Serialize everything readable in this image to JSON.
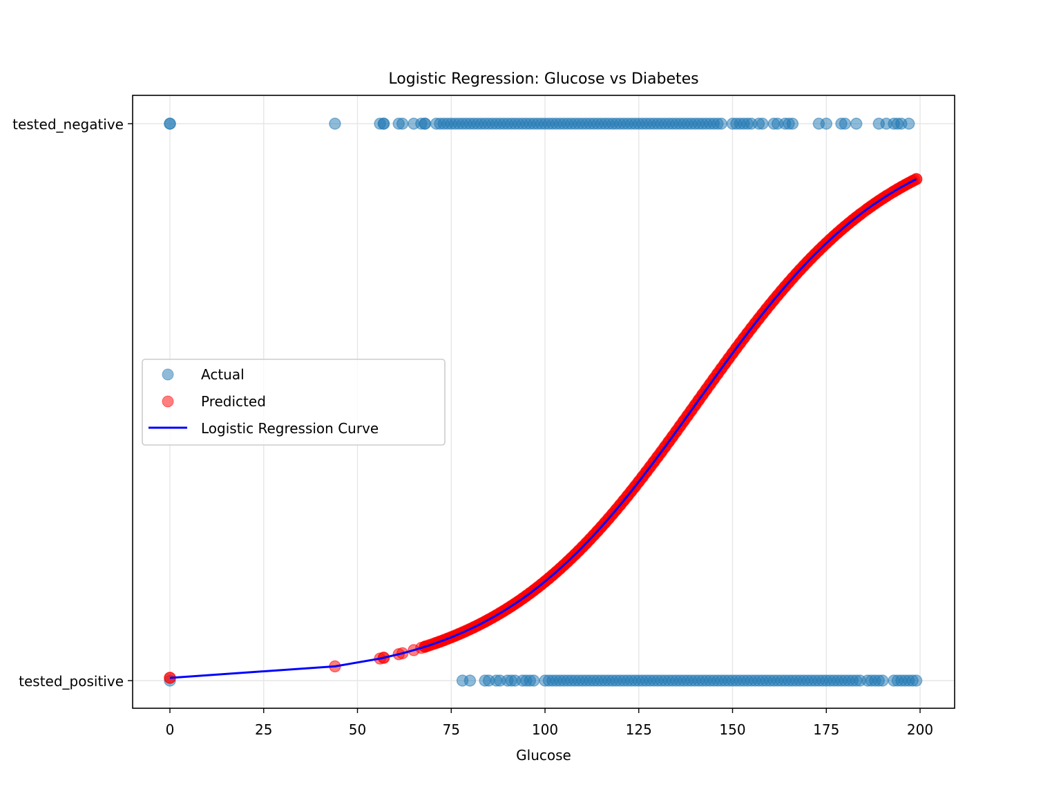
{
  "chart_data": {
    "type": "scatter",
    "title": "Logistic Regression: Glucose vs Diabetes",
    "xlabel": "Glucose",
    "ylabel": "",
    "xlim": [
      -10,
      209
    ],
    "x_ticks": [
      0,
      25,
      50,
      75,
      100,
      125,
      150,
      175,
      200
    ],
    "y_categories": [
      "tested_positive",
      "tested_negative"
    ],
    "grid": true,
    "legend_position": "center-left",
    "legend": [
      "Actual",
      "Predicted",
      "Logistic Regression Curve"
    ],
    "colors": {
      "actual": "#1f77b4",
      "predicted": "#ff0000",
      "curve": "#0000ff"
    },
    "logistic_model": {
      "intercept": -5.3,
      "coef": 0.0377
    },
    "series": [
      {
        "name": "Actual",
        "class": "tested_negative",
        "x": [
          0,
          0,
          44,
          56,
          57,
          57,
          61,
          62,
          65,
          67,
          68,
          68,
          71,
          72,
          73,
          74,
          75,
          76,
          77,
          78,
          79,
          80,
          81,
          82,
          83,
          84,
          85,
          86,
          87,
          88,
          89,
          90,
          91,
          92,
          93,
          94,
          95,
          96,
          97,
          98,
          99,
          100,
          101,
          102,
          103,
          104,
          105,
          106,
          107,
          108,
          109,
          110,
          111,
          112,
          113,
          114,
          115,
          116,
          117,
          118,
          119,
          120,
          121,
          122,
          123,
          124,
          125,
          126,
          127,
          128,
          129,
          130,
          131,
          132,
          133,
          134,
          135,
          136,
          137,
          138,
          139,
          140,
          141,
          142,
          143,
          144,
          145,
          146,
          147,
          150,
          151,
          152,
          153,
          154,
          155,
          157,
          158,
          161,
          162,
          164,
          165,
          166,
          173,
          175,
          179,
          180,
          183,
          189,
          191,
          193,
          194,
          195,
          197
        ]
      },
      {
        "name": "Actual",
        "class": "tested_positive",
        "x": [
          0,
          78,
          80,
          84,
          85,
          87,
          88,
          90,
          91,
          92,
          94,
          95,
          96,
          97,
          100,
          101,
          102,
          103,
          104,
          105,
          106,
          107,
          108,
          109,
          110,
          111,
          112,
          113,
          114,
          115,
          116,
          117,
          118,
          119,
          120,
          121,
          122,
          123,
          124,
          125,
          126,
          127,
          128,
          129,
          130,
          131,
          132,
          133,
          134,
          135,
          136,
          137,
          138,
          139,
          140,
          141,
          142,
          143,
          144,
          145,
          146,
          147,
          148,
          149,
          150,
          151,
          152,
          153,
          154,
          155,
          156,
          157,
          158,
          159,
          160,
          161,
          162,
          163,
          164,
          165,
          166,
          167,
          168,
          169,
          170,
          171,
          172,
          173,
          174,
          175,
          176,
          177,
          178,
          179,
          180,
          181,
          182,
          183,
          184,
          186,
          187,
          188,
          189,
          190,
          193,
          194,
          195,
          196,
          197,
          198,
          199
        ]
      },
      {
        "name": "Predicted",
        "x": [
          0,
          0,
          44,
          56,
          57,
          57,
          61,
          62,
          65,
          67,
          68,
          68,
          71,
          72,
          73,
          74,
          75,
          76,
          77,
          78,
          79,
          80,
          81,
          82,
          83,
          84,
          85,
          86,
          87,
          88,
          89,
          90,
          91,
          92,
          93,
          94,
          95,
          96,
          97,
          98,
          99,
          100,
          101,
          102,
          103,
          104,
          105,
          106,
          107,
          108,
          109,
          110,
          111,
          112,
          113,
          114,
          115,
          116,
          117,
          118,
          119,
          120,
          121,
          122,
          123,
          124,
          125,
          126,
          127,
          128,
          129,
          130,
          131,
          132,
          133,
          134,
          135,
          136,
          137,
          138,
          139,
          140,
          141,
          142,
          143,
          144,
          145,
          146,
          147,
          148,
          149,
          150,
          151,
          152,
          153,
          154,
          155,
          156,
          157,
          158,
          159,
          160,
          161,
          162,
          163,
          164,
          165,
          166,
          167,
          168,
          169,
          170,
          171,
          172,
          173,
          174,
          175,
          176,
          177,
          178,
          179,
          180,
          181,
          182,
          183,
          184,
          186,
          187,
          188,
          189,
          190,
          191,
          193,
          194,
          195,
          196,
          197,
          198,
          199
        ]
      },
      {
        "name": "Logistic Regression Curve",
        "x_range": [
          0,
          199
        ]
      }
    ]
  }
}
